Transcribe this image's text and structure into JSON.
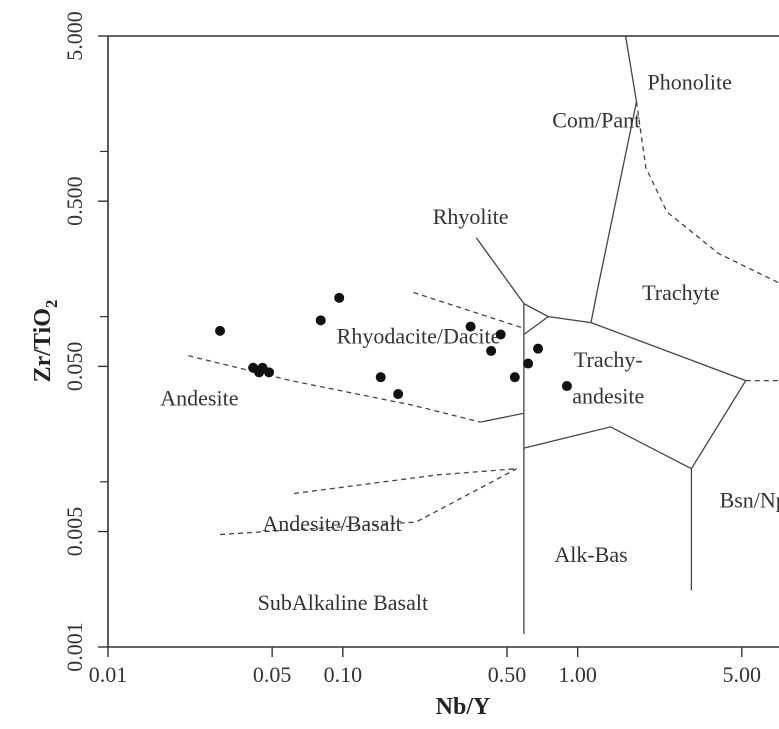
{
  "chart_data": {
    "type": "scatter",
    "xlabel": "Nb/Y",
    "ylabel": "Zr/TiO2",
    "ylabel_main": "Zr/TiO",
    "ylabel_sub": "2",
    "x_scale": "log",
    "y_scale": "log",
    "xlim": [
      0.01,
      7.2
    ],
    "ylim": [
      0.001,
      5.0
    ],
    "x_ticks": [
      {
        "value": 0.01,
        "label": "0.01"
      },
      {
        "value": 0.05,
        "label": "0.05"
      },
      {
        "value": 0.1,
        "label": "0.10"
      },
      {
        "value": 0.5,
        "label": "0.50"
      },
      {
        "value": 1.0,
        "label": "1.00"
      },
      {
        "value": 5.0,
        "label": "5.00"
      }
    ],
    "y_ticks": [
      {
        "value": 5.0,
        "label": "5.000"
      },
      {
        "value": 0.5,
        "label": "0.500"
      },
      {
        "value": 0.05,
        "label": "0.050"
      },
      {
        "value": 0.005,
        "label": "0.005"
      },
      {
        "value": 0.001,
        "label": "0.001"
      }
    ],
    "y_minor_ticks": [
      1.0,
      0.1,
      0.01
    ],
    "field_labels": [
      {
        "text": "Phonolite",
        "x": 3.0,
        "y": 2.55
      },
      {
        "text": "Com/Pant",
        "x": 1.2,
        "y": 1.5
      },
      {
        "text": "Rhyolite",
        "x": 0.35,
        "y": 0.39
      },
      {
        "text": "Trachyte",
        "x": 2.75,
        "y": 0.135
      },
      {
        "text": "Rhyodacite/Dacite",
        "x": 0.21,
        "y": 0.074
      },
      {
        "text": "Trachy-",
        "x": 1.35,
        "y": 0.053
      },
      {
        "text": "andesite",
        "x": 1.35,
        "y": 0.032
      },
      {
        "text": "Andesite",
        "x": 0.0245,
        "y": 0.031
      },
      {
        "text": "Bsn/Nph",
        "x": 5.9,
        "y": 0.0075
      },
      {
        "text": "Andesite/Basalt",
        "x": 0.09,
        "y": 0.0054
      },
      {
        "text": "Alk-Bas",
        "x": 1.14,
        "y": 0.0035
      },
      {
        "text": "SubAlkaline Basalt",
        "x": 0.1,
        "y": 0.0018
      }
    ],
    "boundaries": [
      {
        "style": "solid",
        "points": [
          [
            1.6,
            5.0
          ],
          [
            1.78,
            2.0
          ],
          [
            1.22,
            0.15
          ],
          [
            1.14,
            0.092
          ]
        ]
      },
      {
        "style": "solid",
        "points": [
          [
            0.37,
            0.3
          ],
          [
            0.59,
            0.12
          ],
          [
            0.75,
            0.1
          ],
          [
            1.14,
            0.092
          ],
          [
            5.2,
            0.041
          ],
          [
            3.05,
            0.012
          ],
          [
            3.05,
            0.0022
          ]
        ]
      },
      {
        "style": "solid",
        "points": [
          [
            0.59,
            0.12
          ],
          [
            0.59,
            0.078
          ],
          [
            0.59,
            0.026
          ],
          [
            0.59,
            0.0012
          ]
        ]
      },
      {
        "style": "solid",
        "points": [
          [
            0.59,
            0.078
          ],
          [
            0.75,
            0.1
          ]
        ]
      },
      {
        "style": "solid",
        "points": [
          [
            0.59,
            0.026
          ],
          [
            0.385,
            0.023
          ]
        ]
      },
      {
        "style": "solid",
        "points": [
          [
            0.59,
            0.016
          ],
          [
            1.38,
            0.0215
          ],
          [
            3.05,
            0.012
          ]
        ]
      },
      {
        "style": "dashed",
        "points": [
          [
            1.78,
            2.0
          ],
          [
            1.95,
            0.8
          ],
          [
            2.4,
            0.43
          ],
          [
            4.0,
            0.24
          ],
          [
            7.2,
            0.16
          ]
        ]
      },
      {
        "style": "dashed",
        "points": [
          [
            5.2,
            0.041
          ],
          [
            7.2,
            0.041
          ]
        ]
      },
      {
        "style": "dashed",
        "points": [
          [
            0.022,
            0.058
          ],
          [
            0.06,
            0.041
          ],
          [
            0.2,
            0.029
          ],
          [
            0.385,
            0.023
          ]
        ]
      },
      {
        "style": "dashed",
        "points": [
          [
            0.2,
            0.14
          ],
          [
            0.59,
            0.085
          ]
        ]
      },
      {
        "style": "dashed",
        "points": [
          [
            0.062,
            0.0085
          ],
          [
            0.25,
            0.011
          ],
          [
            0.55,
            0.012
          ]
        ]
      },
      {
        "style": "dashed",
        "points": [
          [
            0.03,
            0.0048
          ],
          [
            0.205,
            0.0057
          ],
          [
            0.55,
            0.012
          ]
        ]
      }
    ],
    "series": [
      {
        "marker": "filled-circle",
        "color": "#111111",
        "points": [
          [
            0.03,
            0.082
          ],
          [
            0.0415,
            0.049
          ],
          [
            0.044,
            0.046
          ],
          [
            0.0455,
            0.049
          ],
          [
            0.0485,
            0.046
          ],
          [
            0.0805,
            0.095
          ],
          [
            0.0965,
            0.13
          ],
          [
            0.145,
            0.043
          ],
          [
            0.172,
            0.034
          ],
          [
            0.35,
            0.087
          ],
          [
            0.428,
            0.062
          ],
          [
            0.47,
            0.078
          ],
          [
            0.54,
            0.043
          ],
          [
            0.615,
            0.052
          ],
          [
            0.678,
            0.064
          ],
          [
            0.9,
            0.038
          ]
        ]
      }
    ]
  }
}
